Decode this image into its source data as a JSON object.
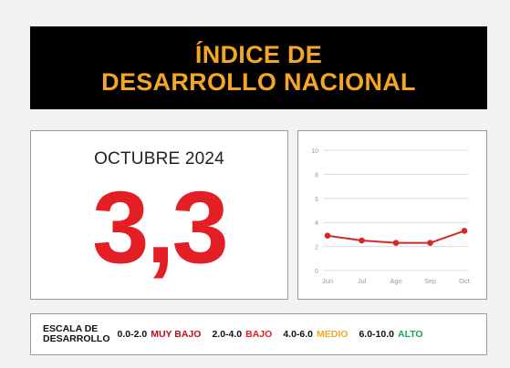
{
  "banner": {
    "title_line1": "ÍNDICE DE",
    "title_line2": "DESARROLLO NACIONAL"
  },
  "indicator": {
    "period": "OCTUBRE 2024",
    "value": "3,3"
  },
  "colors": {
    "title_accent": "#f5a623",
    "value_red": "#e31e24",
    "line": "#d62828",
    "muy_bajo": "#b5121b",
    "bajo": "#e31e24",
    "medio": "#f5a623",
    "alto": "#1aa550"
  },
  "chart_data": {
    "type": "line",
    "categories": [
      "Jun",
      "Jul",
      "Ago",
      "Sep",
      "Oct"
    ],
    "values": [
      2.9,
      2.5,
      2.3,
      2.3,
      3.3
    ],
    "ylim": [
      0,
      10
    ],
    "yticks": [
      0,
      2,
      4,
      6,
      8,
      10
    ],
    "grid": true,
    "title": "",
    "xlabel": "",
    "ylabel": ""
  },
  "scale": {
    "title_line1": "ESCALA DE",
    "title_line2": "DESARROLLO",
    "levels": [
      {
        "range": "0.0-2.0",
        "label": "MUY BAJO",
        "color": "#b5121b"
      },
      {
        "range": "2.0-4.0",
        "label": "BAJO",
        "color": "#e31e24"
      },
      {
        "range": "4.0-6.0",
        "label": "MEDIO",
        "color": "#f5a623"
      },
      {
        "range": "6.0-10.0",
        "label": "ALTO",
        "color": "#1aa550"
      }
    ]
  }
}
